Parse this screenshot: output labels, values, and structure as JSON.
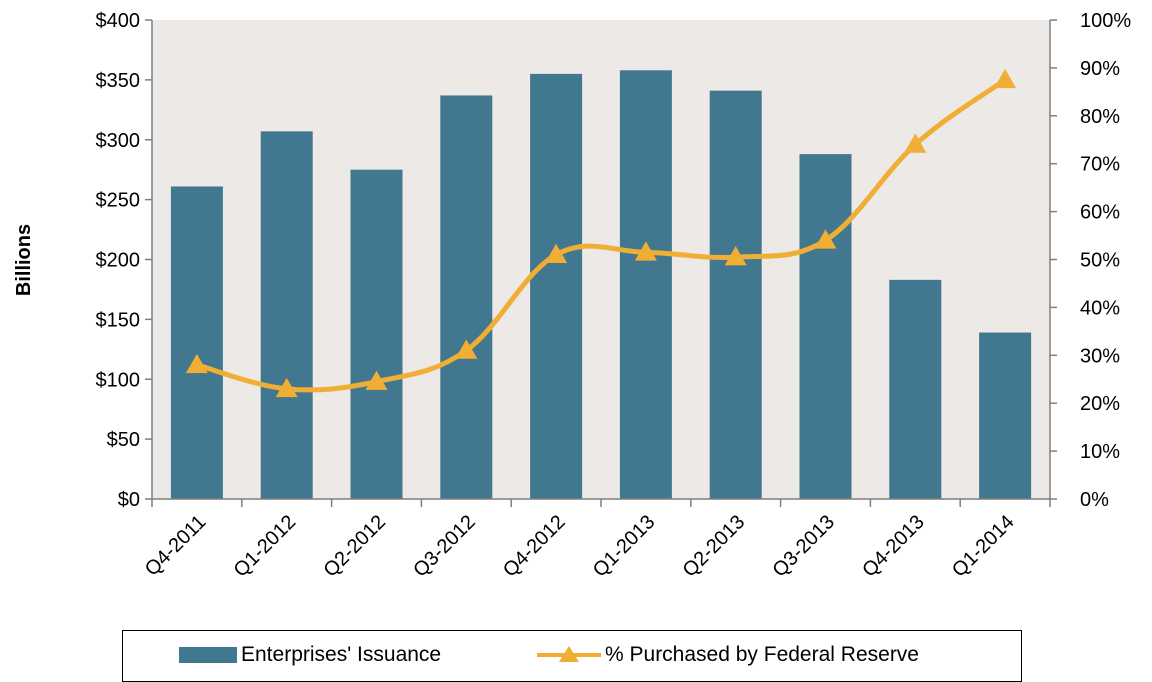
{
  "chart_data": {
    "type": "bar",
    "categories": [
      "Q4-2011",
      "Q1-2012",
      "Q2-2012",
      "Q3-2012",
      "Q4-2012",
      "Q1-2013",
      "Q2-2013",
      "Q3-2013",
      "Q4-2013",
      "Q1-2014"
    ],
    "series": [
      {
        "name": "Enterprises' Issuance",
        "type": "bar",
        "axis": "left",
        "color": "#41788F",
        "values": [
          261,
          307,
          275,
          337,
          355,
          358,
          341,
          288,
          183,
          139
        ]
      },
      {
        "name": "% Purchased by Federal Reserve",
        "type": "line",
        "marker": "triangle",
        "axis": "right",
        "color": "#F0AE35",
        "values": [
          28,
          23,
          24.5,
          31,
          51,
          51.5,
          50.5,
          54,
          74,
          87.5
        ]
      }
    ],
    "ylabel": "Billions",
    "ylim": [
      0,
      400
    ],
    "y_ticks": [
      "$0",
      "$50",
      "$100",
      "$150",
      "$200",
      "$250",
      "$300",
      "$350",
      "$400"
    ],
    "y2lim": [
      0,
      100
    ],
    "y2_ticks": [
      "0%",
      "10%",
      "20%",
      "30%",
      "40%",
      "50%",
      "60%",
      "70%",
      "80%",
      "90%",
      "100%"
    ],
    "plot_background": "#ECE9E6",
    "grid": false,
    "legend_position": "bottom"
  }
}
